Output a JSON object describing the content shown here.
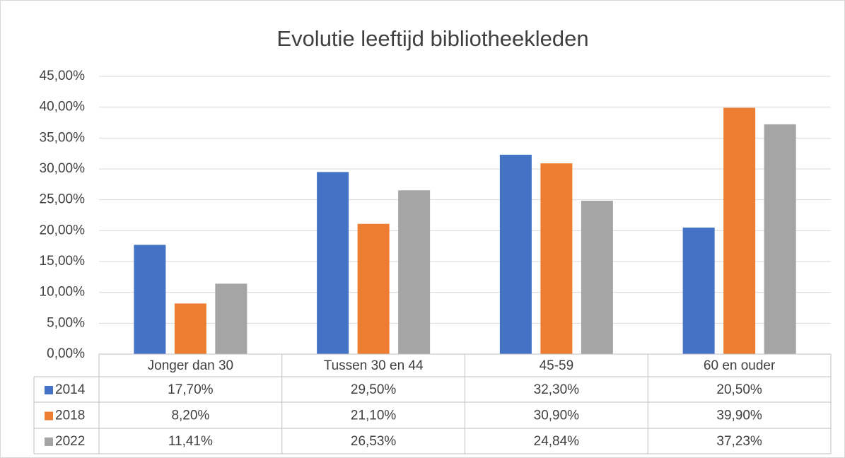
{
  "chart_data": {
    "type": "bar",
    "title": "Evolutie leeftijd bibliotheekleden",
    "categories": [
      "Jonger dan 30",
      "Tussen 30 en 44",
      "45-59",
      "60 en ouder"
    ],
    "series": [
      {
        "name": "2014",
        "color": "#4472c4",
        "values": [
          17.7,
          29.5,
          32.3,
          20.5
        ],
        "value_labels": [
          "17,70%",
          "29,50%",
          "32,30%",
          "20,50%"
        ]
      },
      {
        "name": "2018",
        "color": "#ed7d31",
        "values": [
          8.2,
          21.1,
          30.9,
          39.9
        ],
        "value_labels": [
          "8,20%",
          "21,10%",
          "30,90%",
          "39,90%"
        ]
      },
      {
        "name": "2022",
        "color": "#a5a5a5",
        "values": [
          11.41,
          26.53,
          24.84,
          37.23
        ],
        "value_labels": [
          "11,41%",
          "26,53%",
          "24,84%",
          "37,23%"
        ]
      }
    ],
    "ylim": [
      0,
      45
    ],
    "yticks": [
      {
        "value": 0,
        "label": "0,00%"
      },
      {
        "value": 5,
        "label": "5,00%"
      },
      {
        "value": 10,
        "label": "10,00%"
      },
      {
        "value": 15,
        "label": "15,00%"
      },
      {
        "value": 20,
        "label": "20,00%"
      },
      {
        "value": 25,
        "label": "25,00%"
      },
      {
        "value": 30,
        "label": "30,00%"
      },
      {
        "value": 35,
        "label": "35,00%"
      },
      {
        "value": 40,
        "label": "40,00%"
      },
      {
        "value": 45,
        "label": "45,00%"
      }
    ],
    "grid": true
  }
}
